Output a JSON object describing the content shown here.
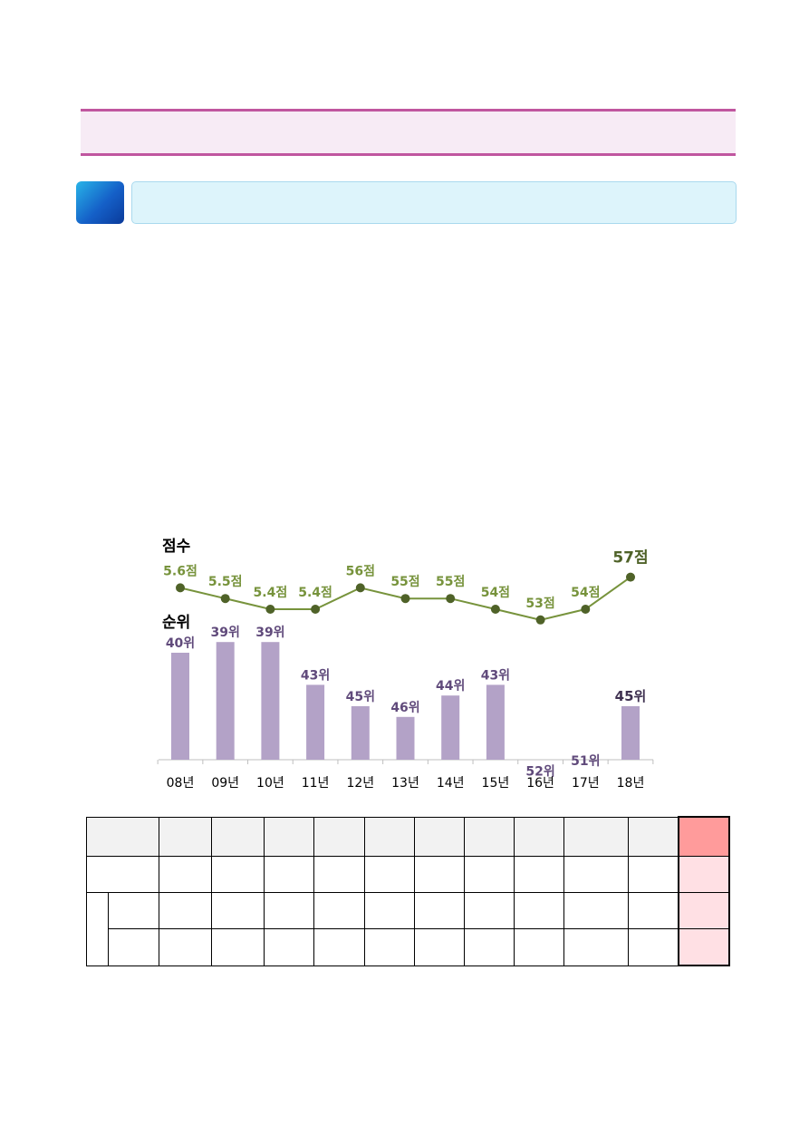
{
  "chart_data": {
    "type": "bar+line",
    "categories": [
      "08년",
      "09년",
      "10년",
      "11년",
      "12년",
      "13년",
      "14년",
      "15년",
      "16년",
      "17년",
      "18년"
    ],
    "score_title": "점수",
    "rank_title": "순위",
    "score": {
      "values": [
        5.6,
        5.5,
        5.4,
        5.4,
        56,
        55,
        55,
        54,
        53,
        54,
        57
      ],
      "labels": [
        "5.6점",
        "5.5점",
        "5.4점",
        "5.4점",
        "56점",
        "55점",
        "55점",
        "54점",
        "53점",
        "54점",
        "57점"
      ],
      "color": "#77933c",
      "marker_color": "#4f6228"
    },
    "rank": {
      "values": [
        40,
        39,
        39,
        43,
        45,
        46,
        44,
        43,
        52,
        51,
        45
      ],
      "labels": [
        "40위",
        "39위",
        "39위",
        "43위",
        "45위",
        "46위",
        "44위",
        "43위",
        "52위",
        "51위",
        "45위"
      ],
      "color": "#b3a2c7",
      "label_color": "#604a7b"
    },
    "highlight_index": 10
  },
  "table": {
    "rows": 4,
    "columns": 12,
    "highlight_column": 11,
    "header_color": "#ff9b9b",
    "highlight_color": "#ffe0e4"
  }
}
